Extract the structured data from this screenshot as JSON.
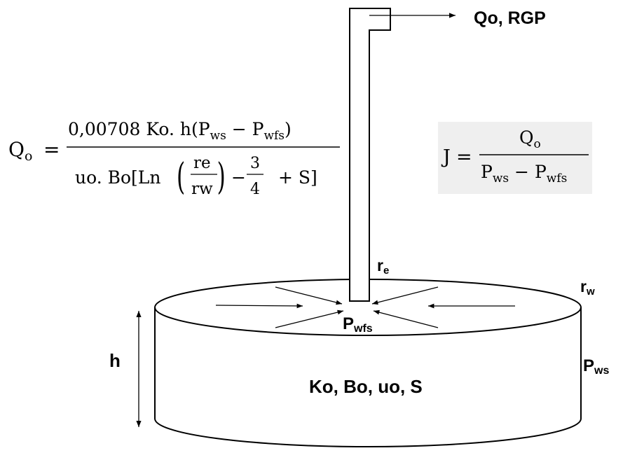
{
  "labels": {
    "flow_out": "Qo, RGP",
    "re_main": "r",
    "re_sub": "e",
    "rw_main": "r",
    "rw_sub": "w",
    "pwfs_main": "P",
    "pwfs_sub": "wfs",
    "pws_main": "P",
    "pws_sub": "ws",
    "height": "h",
    "properties": "Ko, Bo, uo, S"
  },
  "equation_qo": {
    "lhs_main": "Q",
    "lhs_sub": "o",
    "equals": "=",
    "num_text": "0,00708 Ko. h(P",
    "num_sub1": "ws",
    "num_minus": " − P",
    "num_sub2": "wfs",
    "num_close": ")",
    "den_pre": "uo. Bo[Ln",
    "frac_num": "re",
    "frac_den": "rw",
    "den_minus": "−",
    "three": "3",
    "four": "4",
    "den_post": "+  S]"
  },
  "equation_j": {
    "lhs": "J",
    "equals": "=",
    "num_main": "Q",
    "num_sub": "o",
    "den_p1": "P",
    "den_sub1": "ws",
    "den_minus": " − P",
    "den_sub2": "wfs",
    "box_color": "#efefef"
  }
}
